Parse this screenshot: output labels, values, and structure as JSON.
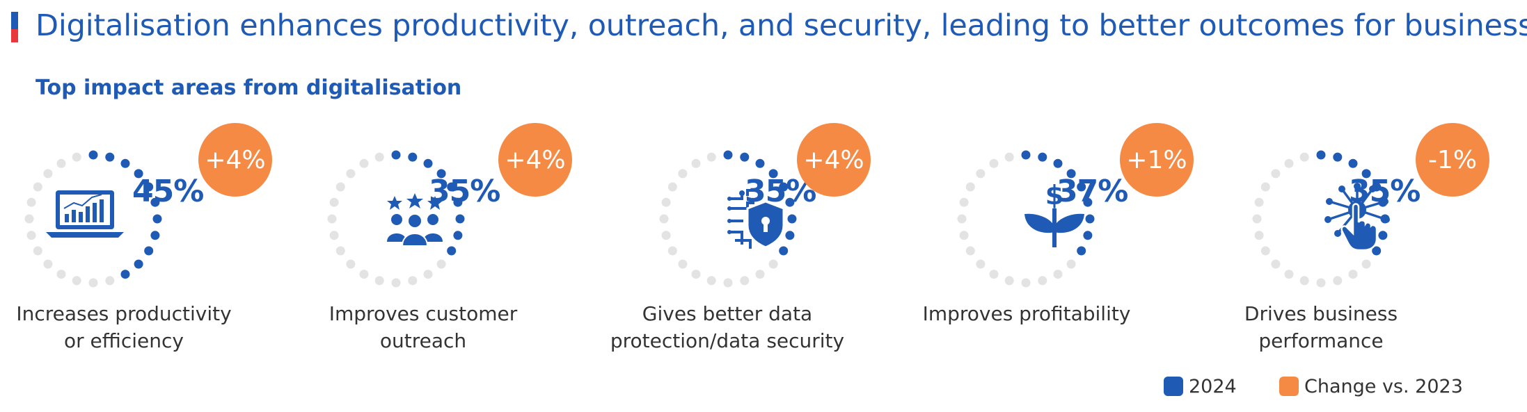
{
  "header": {
    "title": "Digitalisation enhances productivity, outreach, and security, leading to better outcomes for businesses",
    "subtitle": "Top impact areas from digitalisation"
  },
  "colors": {
    "primary": "#1f5bb5",
    "change": "#f58a45",
    "dots": "#e3e3e3",
    "accent_red": "#e8383d"
  },
  "chart_data": {
    "type": "radial-dot-gauge",
    "series": [
      {
        "name": "2024",
        "values": [
          45,
          35,
          35,
          37,
          35
        ],
        "labels": [
          "45%",
          "35%",
          "35%",
          "37%",
          "35%"
        ]
      },
      {
        "name": "Change vs. 2023",
        "values": [
          4,
          4,
          4,
          1,
          -1
        ],
        "labels": [
          "+4%",
          "+4%",
          "+4%",
          "+1%",
          "-1%"
        ]
      }
    ],
    "categories": [
      "Increases productivity\nor efficiency",
      "Improves customer\noutreach",
      "Gives better data\nprotection/data security",
      "Improves profitability",
      "Drives business\nperformance"
    ],
    "icons": [
      "laptop-chart-icon",
      "customers-stars-icon",
      "circuit-shield-icon",
      "dollar-plant-icon",
      "network-touch-icon"
    ],
    "legend": [
      "2024",
      "Change vs. 2023"
    ]
  }
}
